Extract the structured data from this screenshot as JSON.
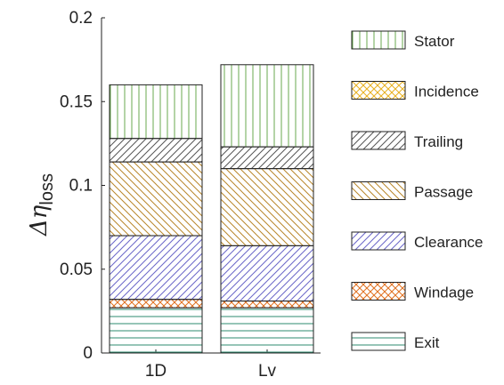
{
  "chart_data": {
    "type": "bar",
    "stacked": true,
    "categories": [
      "1D",
      "Lv"
    ],
    "ylabel_symbol": "Δη",
    "ylabel_subscript": "loss",
    "ylim": [
      0,
      0.2
    ],
    "yticks": [
      "0",
      "0.05",
      "0.1",
      "0.15",
      "0.2"
    ],
    "ytick_values": [
      0,
      0.05,
      0.1,
      0.15,
      0.2
    ],
    "grid": false,
    "legend_position": "right",
    "series": [
      {
        "name": "Exit",
        "values": [
          0.027,
          0.027
        ],
        "color": "#2e8b6f",
        "hatch": "horizontal"
      },
      {
        "name": "Windage",
        "values": [
          0.005,
          0.004
        ],
        "color": "#e07020",
        "hatch": "cross-diagonal"
      },
      {
        "name": "Clearance",
        "values": [
          0.038,
          0.033
        ],
        "color": "#6a66c8",
        "hatch": "diagonal-forward"
      },
      {
        "name": "Passage",
        "values": [
          0.044,
          0.046
        ],
        "color": "#b8862a",
        "hatch": "diagonal-back"
      },
      {
        "name": "Trailing",
        "values": [
          0.014,
          0.013
        ],
        "color": "#555555",
        "hatch": "diagonal-forward-steep"
      },
      {
        "name": "Incidence",
        "values": [
          0,
          0
        ],
        "color": "#e8b020",
        "hatch": "cross-diagonal"
      },
      {
        "name": "Stator",
        "values": [
          0.032,
          0.049
        ],
        "color": "#6aa84f",
        "hatch": "vertical"
      }
    ],
    "legend_order": [
      "Stator",
      "Incidence",
      "Trailing",
      "Passage",
      "Clearance",
      "Windage",
      "Exit"
    ]
  }
}
